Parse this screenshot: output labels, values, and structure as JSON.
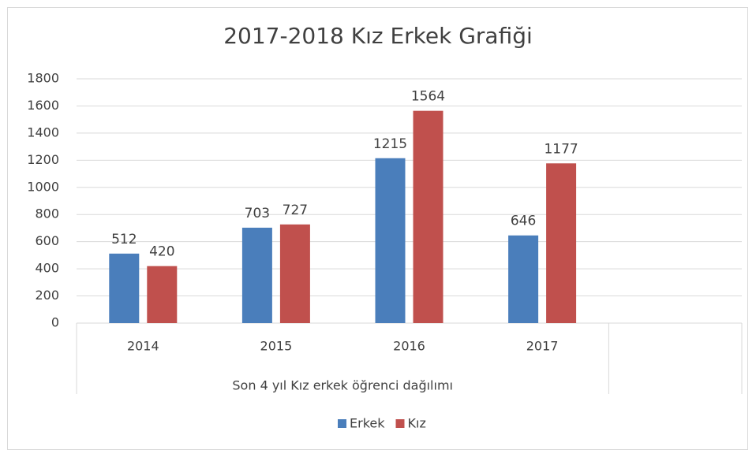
{
  "chart_data": {
    "type": "bar",
    "title": "2017-2018 Kız Erkek Grafiği",
    "categories": [
      "2014",
      "2015",
      "2016",
      "2017",
      null
    ],
    "xlabel": "Son 4 yıl Kız erkek öğrenci dağılımı",
    "series": [
      {
        "name": "Erkek",
        "color": "#4a7ebb",
        "values": [
          512,
          703,
          1215,
          646,
          null
        ]
      },
      {
        "name": "Kız",
        "color": "#c0504d",
        "values": [
          420,
          727,
          1564,
          1177,
          null
        ]
      }
    ],
    "ylim": [
      0,
      1800
    ],
    "yticks": [
      0,
      200,
      400,
      600,
      800,
      1000,
      1200,
      1400,
      1600,
      1800
    ],
    "grid": true,
    "legend": "bottom"
  }
}
